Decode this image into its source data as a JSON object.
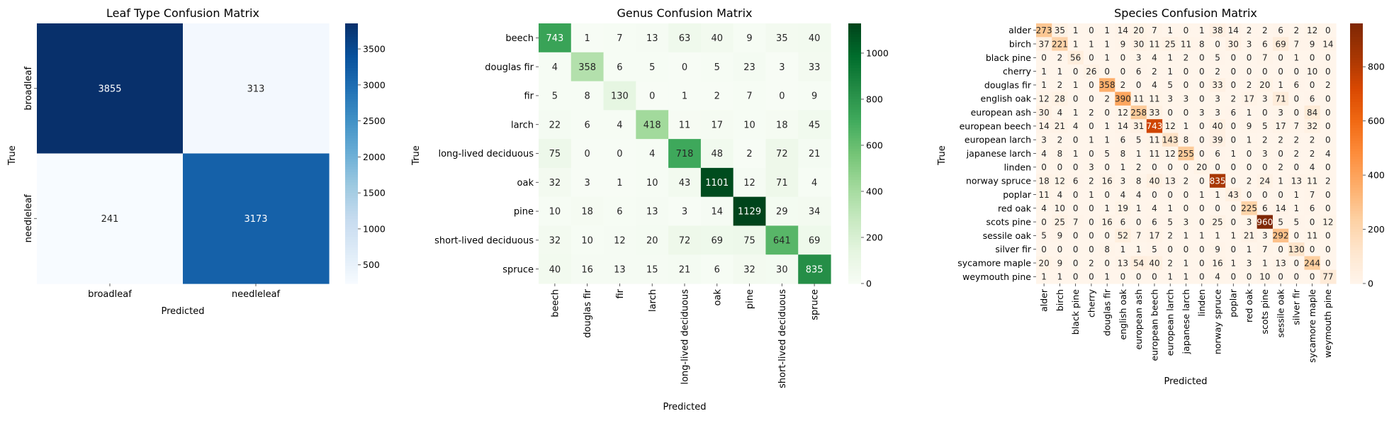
{
  "chart_data": [
    {
      "type": "heatmap",
      "title": "Leaf Type Confusion Matrix",
      "xlabel": "Predicted",
      "ylabel": "True",
      "labels": [
        "broadleaf",
        "needleleaf"
      ],
      "matrix": [
        [
          3855,
          313
        ],
        [
          241,
          3173
        ]
      ],
      "colormap": "Blues",
      "colorbar_range": [
        241,
        3855
      ],
      "colorbar_ticks": [
        500,
        1000,
        1500,
        2000,
        2500,
        3000,
        3500
      ]
    },
    {
      "type": "heatmap",
      "title": "Genus Confusion Matrix",
      "xlabel": "Predicted",
      "ylabel": "True",
      "labels": [
        "beech",
        "douglas fir",
        "fir",
        "larch",
        "long-lived deciduous",
        "oak",
        "pine",
        "short-lived deciduous",
        "spruce"
      ],
      "matrix": [
        [
          743,
          1,
          7,
          13,
          63,
          40,
          9,
          35,
          40
        ],
        [
          4,
          358,
          6,
          5,
          0,
          5,
          23,
          3,
          33
        ],
        [
          5,
          8,
          130,
          0,
          1,
          2,
          7,
          0,
          9
        ],
        [
          22,
          6,
          4,
          418,
          11,
          17,
          10,
          18,
          45
        ],
        [
          75,
          0,
          0,
          4,
          718,
          48,
          2,
          72,
          21
        ],
        [
          32,
          3,
          1,
          10,
          43,
          1101,
          12,
          71,
          4
        ],
        [
          10,
          18,
          6,
          13,
          3,
          14,
          1129,
          29,
          34
        ],
        [
          32,
          10,
          12,
          20,
          72,
          69,
          75,
          641,
          69
        ],
        [
          40,
          16,
          13,
          15,
          21,
          6,
          32,
          30,
          835
        ]
      ],
      "colormap": "Greens",
      "colorbar_range": [
        0,
        1129
      ],
      "colorbar_ticks": [
        0,
        200,
        400,
        600,
        800,
        1000
      ]
    },
    {
      "type": "heatmap",
      "title": "Species Confusion Matrix",
      "xlabel": "Predicted",
      "ylabel": "True",
      "labels": [
        "alder",
        "birch",
        "black pine",
        "cherry",
        "douglas fir",
        "english oak",
        "european ash",
        "european beech",
        "european larch",
        "japanese larch",
        "linden",
        "norway spruce",
        "poplar",
        "red oak",
        "scots pine",
        "sessile oak",
        "silver fir",
        "sycamore maple",
        "weymouth pine"
      ],
      "matrix": [
        [
          273,
          35,
          1,
          0,
          1,
          14,
          20,
          7,
          1,
          0,
          1,
          38,
          14,
          2,
          2,
          6,
          2,
          12,
          0
        ],
        [
          37,
          221,
          1,
          1,
          1,
          9,
          30,
          11,
          25,
          11,
          8,
          0,
          30,
          3,
          6,
          69,
          7,
          9,
          14
        ],
        [
          0,
          2,
          56,
          0,
          1,
          0,
          3,
          4,
          1,
          2,
          0,
          5,
          0,
          0,
          7,
          0,
          1,
          0,
          0
        ],
        [
          1,
          1,
          0,
          26,
          0,
          0,
          6,
          2,
          1,
          0,
          0,
          2,
          0,
          0,
          0,
          0,
          0,
          10,
          0
        ],
        [
          1,
          2,
          1,
          0,
          358,
          2,
          0,
          4,
          5,
          0,
          0,
          33,
          0,
          2,
          20,
          1,
          6,
          0,
          2
        ],
        [
          12,
          28,
          0,
          0,
          2,
          390,
          11,
          11,
          3,
          3,
          0,
          3,
          2,
          17,
          3,
          71,
          0,
          6,
          0
        ],
        [
          30,
          4,
          1,
          2,
          0,
          12,
          258,
          33,
          0,
          0,
          3,
          3,
          6,
          1,
          0,
          3,
          0,
          84,
          0
        ],
        [
          14,
          21,
          4,
          0,
          1,
          14,
          31,
          743,
          12,
          1,
          0,
          40,
          0,
          9,
          5,
          17,
          7,
          32,
          0
        ],
        [
          3,
          2,
          0,
          1,
          1,
          6,
          5,
          11,
          143,
          8,
          0,
          39,
          0,
          1,
          2,
          2,
          2,
          2,
          0
        ],
        [
          4,
          8,
          1,
          0,
          5,
          8,
          1,
          11,
          12,
          255,
          0,
          6,
          1,
          0,
          3,
          0,
          2,
          2,
          4
        ],
        [
          0,
          0,
          0,
          3,
          0,
          1,
          2,
          0,
          0,
          0,
          20,
          0,
          0,
          0,
          0,
          2,
          0,
          4,
          0
        ],
        [
          18,
          12,
          6,
          2,
          16,
          3,
          8,
          40,
          13,
          2,
          0,
          835,
          0,
          2,
          24,
          1,
          13,
          11,
          2
        ],
        [
          11,
          4,
          0,
          1,
          0,
          4,
          4,
          0,
          0,
          0,
          1,
          1,
          43,
          0,
          0,
          0,
          1,
          7,
          0
        ],
        [
          4,
          10,
          0,
          0,
          1,
          19,
          1,
          4,
          1,
          0,
          0,
          0,
          0,
          225,
          6,
          14,
          1,
          6,
          0
        ],
        [
          0,
          25,
          7,
          0,
          16,
          6,
          0,
          6,
          5,
          3,
          0,
          25,
          0,
          3,
          960,
          5,
          5,
          0,
          12
        ],
        [
          5,
          9,
          0,
          0,
          0,
          52,
          7,
          17,
          2,
          1,
          1,
          1,
          1,
          21,
          3,
          292,
          0,
          11,
          0
        ],
        [
          0,
          0,
          0,
          0,
          8,
          1,
          1,
          5,
          0,
          0,
          0,
          9,
          0,
          1,
          7,
          0,
          130,
          0,
          0
        ],
        [
          20,
          9,
          0,
          2,
          0,
          13,
          54,
          40,
          2,
          1,
          0,
          16,
          1,
          3,
          1,
          13,
          0,
          244,
          0
        ],
        [
          1,
          1,
          0,
          0,
          1,
          0,
          0,
          0,
          1,
          1,
          0,
          4,
          0,
          0,
          10,
          0,
          0,
          0,
          77
        ]
      ],
      "colormap": "Oranges",
      "colorbar_range": [
        0,
        960
      ],
      "colorbar_ticks": [
        0,
        200,
        400,
        600,
        800
      ]
    }
  ]
}
